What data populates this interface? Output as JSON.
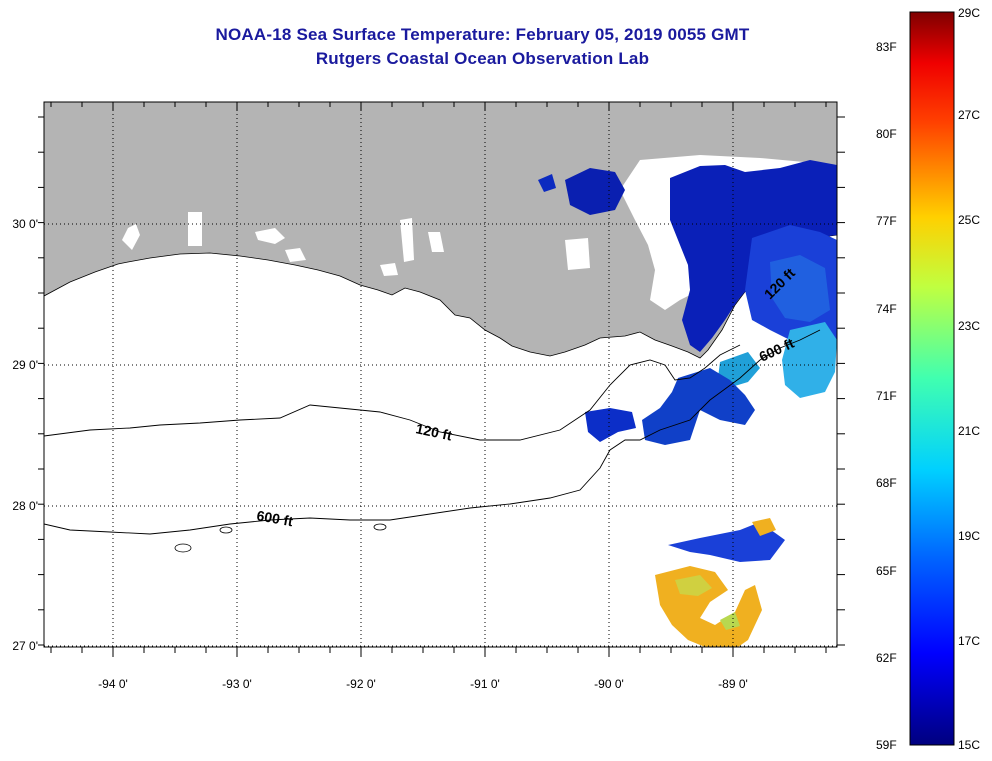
{
  "title": {
    "line1": "NOAA-18 Sea Surface Temperature:  February 05, 2019 0055 GMT",
    "line2": "Rutgers Coastal Ocean Observation Lab"
  },
  "map": {
    "lon_labels": [
      "-94 0'",
      "-93 0'",
      "-92 0'",
      "-91 0'",
      "-90 0'",
      "-89 0'"
    ],
    "lat_labels": [
      "30 0'",
      "29 0'",
      "28 0'",
      "27 0'"
    ],
    "contours": [
      {
        "depth": "120 ft"
      },
      {
        "depth": "600 ft"
      },
      {
        "depth": "600 ft"
      },
      {
        "depth": "120 ft"
      }
    ],
    "colors": {
      "land": "#b4b4b4",
      "cloud": "#ffffff",
      "sst_cold": "#0a2cc8",
      "sst_warm": "#f0b020"
    }
  },
  "colorbar": {
    "celsius": [
      "29C",
      "27C",
      "25C",
      "23C",
      "21C",
      "19C",
      "17C",
      "15C"
    ],
    "fahrenheit": [
      "83F",
      "80F",
      "77F",
      "74F",
      "71F",
      "68F",
      "65F",
      "62F",
      "59F"
    ]
  }
}
